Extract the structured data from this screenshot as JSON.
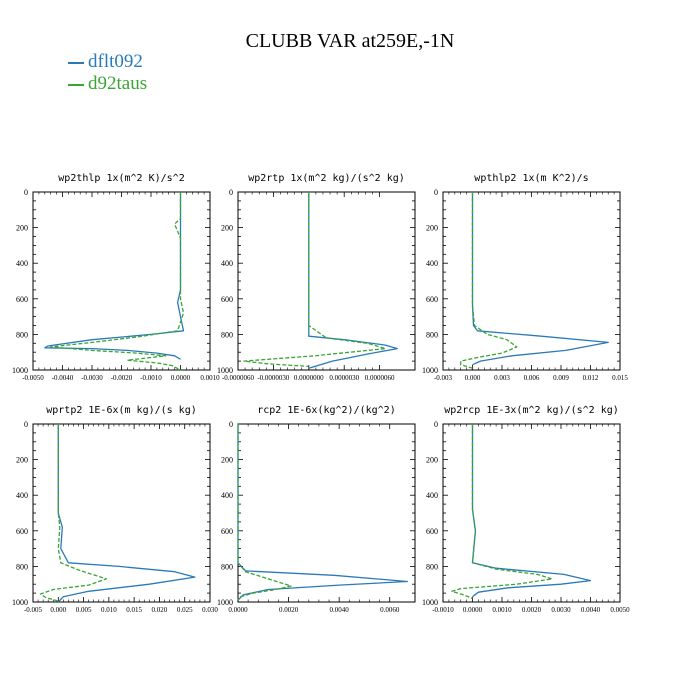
{
  "title": "CLUBB VAR at259E,-1N",
  "legend": [
    {
      "label": "dflt092",
      "color": "#2a7ab8"
    },
    {
      "label": "d92taus",
      "color": "#3aa534"
    }
  ],
  "chart_data": [
    {
      "type": "line",
      "title": "wp2thlp  1x(m^2 K)/s^2",
      "xlim": [
        -0.005,
        0.001
      ],
      "xticks": [
        -0.005,
        -0.004,
        -0.003,
        -0.002,
        -0.001,
        0.0,
        0.001
      ],
      "xticklabels": [
        "-0.0050",
        "-0.0040",
        "-0.0030",
        "-0.0020",
        "-0.0010",
        "0.0000",
        "0.0010"
      ],
      "ylim": [
        1000,
        0
      ],
      "yticks": [
        0,
        200,
        400,
        600,
        800,
        1000
      ],
      "series": [
        {
          "name": "dflt092",
          "x": [
            0.0,
            0.0,
            0.0,
            0.0,
            -0.0001,
            0.0,
            0.0001,
            -0.001,
            -0.003,
            -0.0045,
            -0.0046,
            -0.003,
            -0.0018,
            -0.0008,
            -0.0002,
            0.0
          ],
          "y": [
            0,
            200,
            400,
            550,
            620,
            700,
            780,
            800,
            830,
            865,
            875,
            880,
            890,
            905,
            920,
            940
          ]
        },
        {
          "name": "d92taus",
          "x": [
            0.0,
            0.0,
            -0.0002,
            0.0,
            0.0,
            0.0001,
            -0.0001,
            -0.0015,
            -0.003,
            -0.0044,
            -0.003,
            -0.0015,
            -0.0005,
            -0.0018,
            -0.0008,
            -0.0003,
            0.0
          ],
          "y": [
            0,
            150,
            180,
            260,
            600,
            680,
            780,
            815,
            845,
            870,
            890,
            905,
            920,
            945,
            960,
            975,
            1000
          ]
        }
      ]
    },
    {
      "type": "line",
      "title": "wp2rtp  1x(m^2 kg)/(s^2 kg)",
      "xlim": [
        -6e-06,
        9e-06
      ],
      "xticks": [
        -6e-06,
        -3e-06,
        0.0,
        3e-06,
        6e-06
      ],
      "xticklabels": [
        "-0.0000060",
        "-0.0000030",
        "0.0000000",
        "0.0000030",
        "0.0000060"
      ],
      "ylim": [
        1000,
        0
      ],
      "yticks": [
        0,
        200,
        400,
        600,
        800,
        1000
      ],
      "series": [
        {
          "name": "dflt092",
          "x": [
            0.0,
            0.0,
            0.0,
            0.0,
            0.0,
            0.0,
            3e-06,
            6.5e-06,
            7.5e-06,
            5e-06,
            2e-06,
            0.0
          ],
          "y": [
            0,
            300,
            400,
            600,
            750,
            810,
            830,
            860,
            880,
            910,
            950,
            990
          ]
        },
        {
          "name": "d92taus",
          "x": [
            0.0,
            0.0,
            0.0,
            0.0,
            0.0,
            1.5e-06,
            5e-06,
            6.5e-06,
            5e-07,
            -5.5e-06,
            -3.5e-06,
            0.0
          ],
          "y": [
            0,
            300,
            400,
            600,
            750,
            820,
            850,
            880,
            920,
            950,
            965,
            980
          ]
        }
      ]
    },
    {
      "type": "line",
      "title": "wpthlp2  1x(m K^2)/s",
      "xlim": [
        -0.003,
        0.015
      ],
      "xticks": [
        -0.003,
        0.0,
        0.003,
        0.006,
        0.009,
        0.012,
        0.015
      ],
      "xticklabels": [
        "-0.003",
        "0.000",
        "0.003",
        "0.006",
        "0.009",
        "0.012",
        "0.015"
      ],
      "ylim": [
        1000,
        0
      ],
      "yticks": [
        0,
        200,
        400,
        600,
        800,
        1000
      ],
      "series": [
        {
          "name": "dflt092",
          "x": [
            0.0,
            0.0,
            0.0,
            0.0,
            0.0001,
            0.0005,
            0.007,
            0.0138,
            0.0095,
            0.004,
            0.0008,
            0.0
          ],
          "y": [
            0,
            400,
            580,
            640,
            750,
            780,
            810,
            845,
            890,
            920,
            950,
            970
          ]
        },
        {
          "name": "d92taus",
          "x": [
            0.0,
            0.0,
            0.0,
            0.0,
            0.0002,
            0.0015,
            0.0035,
            0.0045,
            0.003,
            0.0005,
            -0.0012,
            -0.0012,
            0.0
          ],
          "y": [
            0,
            400,
            580,
            640,
            750,
            800,
            830,
            870,
            905,
            930,
            950,
            970,
            990
          ]
        }
      ]
    },
    {
      "type": "line",
      "title": "wprtp2  1E-6x(m kg)/(s kg)",
      "xlim": [
        -0.005,
        0.03
      ],
      "xticks": [
        -0.005,
        0.0,
        0.005,
        0.01,
        0.015,
        0.02,
        0.025,
        0.03
      ],
      "xticklabels": [
        "-0.005",
        "0.000",
        "0.005",
        "0.010",
        "0.015",
        "0.020",
        "0.025",
        "0.030"
      ],
      "ylim": [
        1000,
        0
      ],
      "yticks": [
        0,
        200,
        400,
        600,
        800,
        1000
      ],
      "series": [
        {
          "name": "dflt092",
          "x": [
            0.0,
            0.0,
            0.0,
            0.0008,
            0.0005,
            0.002,
            0.012,
            0.023,
            0.027,
            0.018,
            0.006,
            0.001,
            0.0
          ],
          "y": [
            0,
            300,
            500,
            580,
            700,
            780,
            800,
            830,
            860,
            900,
            940,
            970,
            1000
          ]
        },
        {
          "name": "d92taus",
          "x": [
            0.0,
            0.0,
            0.0,
            0.0003,
            0.0,
            0.0005,
            0.004,
            0.0095,
            0.006,
            -0.001,
            -0.0035,
            -0.0025,
            0.0
          ],
          "y": [
            0,
            300,
            500,
            580,
            700,
            780,
            820,
            870,
            905,
            930,
            955,
            975,
            995
          ]
        }
      ]
    },
    {
      "type": "line",
      "title": "rcp2  1E-6x(kg^2)/(kg^2)",
      "xlim": [
        0.0,
        0.007
      ],
      "xticks": [
        0.0,
        0.002,
        0.004,
        0.006
      ],
      "xticklabels": [
        "0.0000",
        "0.0020",
        "0.0040",
        "0.0060"
      ],
      "ylim": [
        1000,
        0
      ],
      "yticks": [
        0,
        200,
        400,
        600,
        800,
        1000
      ],
      "series": [
        {
          "name": "dflt092",
          "x": [
            0.0,
            0.0,
            0.0,
            0.0003,
            0.0038,
            0.0067,
            0.004,
            0.0012,
            0.0002,
            0.0
          ],
          "y": [
            0,
            400,
            780,
            825,
            850,
            885,
            905,
            930,
            960,
            990
          ]
        },
        {
          "name": "d92taus",
          "x": [
            0.0,
            0.0,
            0.0,
            0.0003,
            0.0012,
            0.0021,
            0.0015,
            0.0006,
            0.0001,
            0.0
          ],
          "y": [
            0,
            400,
            780,
            830,
            870,
            910,
            930,
            950,
            970,
            990
          ]
        }
      ]
    },
    {
      "type": "line",
      "title": "wp2rcp  1E-3x(m^2 kg)/(s^2 kg)",
      "xlim": [
        -0.001,
        0.005
      ],
      "xticks": [
        -0.001,
        0.0,
        0.001,
        0.002,
        0.003,
        0.004,
        0.005
      ],
      "xticklabels": [
        "-0.0010",
        "0.0000",
        "0.0010",
        "0.0020",
        "0.0030",
        "0.0040",
        "0.0050"
      ],
      "ylim": [
        1000,
        0
      ],
      "yticks": [
        0,
        200,
        400,
        600,
        800,
        1000
      ],
      "series": [
        {
          "name": "dflt092",
          "x": [
            0.0,
            0.0,
            0.0,
            0.0,
            0.0001,
            0.0,
            0.0008,
            0.0031,
            0.004,
            0.003,
            0.0012,
            0.0002,
            0.0
          ],
          "y": [
            0,
            260,
            320,
            480,
            600,
            780,
            810,
            845,
            880,
            900,
            920,
            945,
            970
          ]
        },
        {
          "name": "d92taus",
          "x": [
            0.0,
            0.0,
            0.0,
            0.0,
            0.0001,
            0.0,
            0.0008,
            0.0022,
            0.0027,
            0.0015,
            -0.0004,
            -0.0007,
            -0.0003,
            0.0
          ],
          "y": [
            0,
            260,
            320,
            480,
            600,
            780,
            815,
            845,
            870,
            900,
            925,
            940,
            960,
            980
          ]
        }
      ]
    }
  ]
}
